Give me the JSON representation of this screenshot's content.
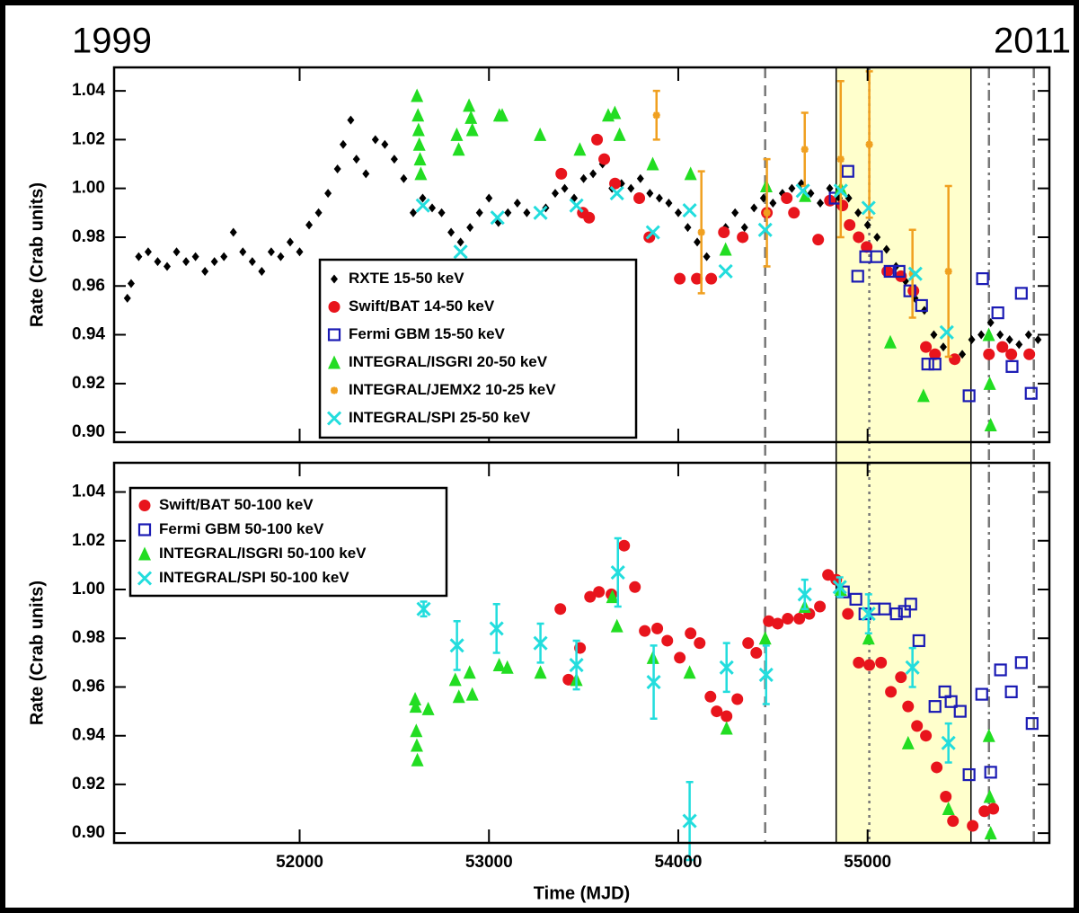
{
  "year_labels": [
    "1999",
    "2011"
  ],
  "overlays": {
    "highlight": [
      54834,
      55546
    ],
    "highlight_color": "#ffffcc",
    "vlines": [
      {
        "x": 54459,
        "style": "dashed"
      },
      {
        "x": 55009,
        "style": "dotted"
      },
      {
        "x": 55641,
        "style": "dashdot"
      },
      {
        "x": 55878,
        "style": "dashdot"
      }
    ]
  },
  "chart_data": [
    {
      "type": "scatter",
      "ylabel": "Rate (Crab units)",
      "xlim": [
        51020,
        55960
      ],
      "ylim": [
        0.896,
        1.0496
      ],
      "xticks": [
        52000,
        53000,
        54000,
        55000
      ],
      "show_xticklabels": false,
      "yticks": [
        {
          "value": 0.9,
          "label": "0.90"
        },
        {
          "value": 0.92,
          "label": "0.92"
        },
        {
          "value": 0.94,
          "label": "0.94"
        },
        {
          "value": 0.96,
          "label": "0.96"
        },
        {
          "value": 0.98,
          "label": "0.98"
        },
        {
          "value": 1.0,
          "label": "1.00"
        },
        {
          "value": 1.02,
          "label": "1.02"
        },
        {
          "value": 1.04,
          "label": "1.04"
        }
      ],
      "legend": "lower center",
      "series": [
        {
          "name": "RXTE 15-50 keV",
          "color": "#000000",
          "marker": "diamond",
          "x": [
            51090,
            51110,
            51150,
            51200,
            51250,
            51300,
            51350,
            51400,
            51450,
            51500,
            51550,
            51600,
            51650,
            51700,
            51750,
            51800,
            51850,
            51900,
            51950,
            52000,
            52050,
            52100,
            52150,
            52200,
            52230,
            52270,
            52300,
            52350,
            52400,
            52450,
            52500,
            52550,
            52600,
            52650,
            52700,
            52750,
            52800,
            52850,
            52900,
            52950,
            53000,
            53050,
            53100,
            53150,
            53200,
            53300,
            53350,
            53400,
            53450,
            53500,
            53550,
            53600,
            53650,
            53700,
            53750,
            53800,
            53850,
            53900,
            53950,
            54000,
            54050,
            54100,
            54150,
            54250,
            54300,
            54350,
            54400,
            54450,
            54500,
            54550,
            54600,
            54650,
            54700,
            54750,
            54800,
            54850,
            54900,
            54950,
            55000,
            55050,
            55100,
            55150,
            55200,
            55250,
            55300,
            55350,
            55400,
            55450,
            55500,
            55550,
            55600,
            55650,
            55700,
            55750,
            55800,
            55850,
            55900
          ],
          "values": [
            0.955,
            0.961,
            0.972,
            0.974,
            0.97,
            0.968,
            0.974,
            0.97,
            0.972,
            0.966,
            0.97,
            0.972,
            0.982,
            0.974,
            0.97,
            0.966,
            0.974,
            0.972,
            0.978,
            0.974,
            0.985,
            0.99,
            0.998,
            1.008,
            1.018,
            1.028,
            1.012,
            1.006,
            1.02,
            1.018,
            1.012,
            1.004,
            0.99,
            0.996,
            0.992,
            0.99,
            0.982,
            0.978,
            0.984,
            0.99,
            0.996,
            0.986,
            0.99,
            0.994,
            0.99,
            0.992,
            0.998,
            1.0,
            0.996,
            1.004,
            1.006,
            1.01,
            1.0,
            1.002,
            1.0,
            1.004,
            0.998,
            0.996,
            0.994,
            0.99,
            0.984,
            0.978,
            0.972,
            0.984,
            0.99,
            0.984,
            0.992,
            0.996,
            0.994,
            0.998,
            1.0,
            1.002,
            0.998,
            0.994,
            1.0,
            0.996,
            0.996,
            0.99,
            0.985,
            0.98,
            0.975,
            0.968,
            0.962,
            0.955,
            0.95,
            0.94,
            0.935,
            0.93,
            0.932,
            0.938,
            0.94,
            0.945,
            0.94,
            0.938,
            0.936,
            0.94,
            0.938
          ]
        },
        {
          "name": "Swift/BAT 14-50 keV",
          "color": "#e8141c",
          "marker": "circle",
          "x": [
            53382,
            53496,
            53529,
            53571,
            53609,
            53666,
            53794,
            53847,
            54008,
            54098,
            54174,
            54241,
            54340,
            54468,
            54573,
            54611,
            54739,
            54801,
            54867,
            54905,
            54953,
            54995,
            55104,
            55176,
            55242,
            55308,
            55356,
            55460,
            55641,
            55712,
            55759,
            55854
          ],
          "values": [
            1.006,
            0.99,
            0.988,
            1.02,
            1.012,
            1.002,
            0.996,
            0.98,
            0.963,
            0.963,
            0.963,
            0.982,
            0.98,
            0.99,
            0.996,
            0.99,
            0.979,
            0.995,
            0.993,
            0.985,
            0.98,
            0.976,
            0.966,
            0.964,
            0.958,
            0.935,
            0.932,
            0.93,
            0.932,
            0.935,
            0.932,
            0.932
          ]
        },
        {
          "name": "Fermi GBM 15-50 keV",
          "color": "#1a1ab4",
          "marker": "square",
          "x": [
            54829,
            54896,
            54948,
            54990,
            55047,
            55119,
            55166,
            55223,
            55285,
            55318,
            55356,
            55536,
            55607,
            55688,
            55763,
            55812,
            55864
          ],
          "values": [
            0.996,
            1.007,
            0.964,
            0.972,
            0.972,
            0.966,
            0.966,
            0.958,
            0.952,
            0.928,
            0.928,
            0.915,
            0.963,
            0.949,
            0.927,
            0.957,
            0.916
          ]
        },
        {
          "name": "INTEGRAL/ISGRI 20-50 keV",
          "color": "#22dd22",
          "marker": "triangle",
          "x": [
            52620,
            52625,
            52628,
            52632,
            52636,
            52640,
            52830,
            52840,
            52895,
            52905,
            52912,
            53055,
            53070,
            53270,
            53480,
            53630,
            53665,
            53690,
            53865,
            54065,
            54250,
            54465,
            54670,
            54858,
            55120,
            55295,
            55640,
            55645,
            55650
          ],
          "values": [
            1.038,
            1.03,
            1.024,
            1.018,
            1.012,
            1.006,
            1.022,
            1.016,
            1.034,
            1.029,
            1.024,
            1.03,
            1.03,
            1.022,
            1.016,
            1.03,
            1.031,
            1.022,
            1.01,
            1.006,
            0.975,
            1.001,
            0.997,
            1.0,
            0.937,
            0.915,
            0.94,
            0.92,
            0.903
          ]
        },
        {
          "name": "INTEGRAL/JEMX2 10-25 keV",
          "color": "#f0a020",
          "marker": "asterisk",
          "x": [
            53885,
            54122,
            54468,
            54668,
            54858,
            55009,
            55237,
            55427
          ],
          "values": [
            1.03,
            0.982,
            0.99,
            1.016,
            1.012,
            1.018,
            0.965,
            0.966
          ],
          "errors": [
            0.01,
            0.025,
            0.022,
            0.015,
            0.032,
            0.03,
            0.018,
            0.035
          ]
        },
        {
          "name": "INTEGRAL/SPI 25-50 keV",
          "color": "#22dddd",
          "marker": "cross",
          "x": [
            52651,
            52850,
            53045,
            53272,
            53462,
            53676,
            53866,
            54060,
            54250,
            54459,
            54658,
            54858,
            55005,
            55252,
            55418
          ],
          "values": [
            0.993,
            0.974,
            0.988,
            0.99,
            0.993,
            0.998,
            0.982,
            0.991,
            0.966,
            0.983,
            0.999,
            0.999,
            0.992,
            0.965,
            0.941
          ]
        }
      ]
    },
    {
      "type": "scatter",
      "ylabel": "Rate (Crab units)",
      "xlabel": "Time (MJD)",
      "xlim": [
        51020,
        55960
      ],
      "ylim": [
        0.896,
        1.052
      ],
      "xticks": [
        52000,
        53000,
        54000,
        55000
      ],
      "show_xticklabels": true,
      "yticks": [
        {
          "value": 0.9,
          "label": "0.90"
        },
        {
          "value": 0.92,
          "label": "0.92"
        },
        {
          "value": 0.94,
          "label": "0.94"
        },
        {
          "value": 0.96,
          "label": "0.96"
        },
        {
          "value": 0.98,
          "label": "0.98"
        },
        {
          "value": 1.0,
          "label": "1.00"
        },
        {
          "value": 1.02,
          "label": "1.02"
        },
        {
          "value": 1.04,
          "label": "1.04"
        }
      ],
      "legend": "upper left",
      "series": [
        {
          "name": "Swift/BAT 50-100 keV",
          "color": "#e8141c",
          "marker": "circle",
          "x": [
            53377,
            53420,
            53481,
            53534,
            53581,
            53647,
            53714,
            53771,
            53823,
            53889,
            53942,
            54008,
            54065,
            54113,
            54170,
            54203,
            54255,
            54312,
            54369,
            54412,
            54478,
            54525,
            54578,
            54639,
            54692,
            54748,
            54791,
            54834,
            54896,
            54953,
            55009,
            55071,
            55123,
            55176,
            55214,
            55261,
            55308,
            55365,
            55413,
            55451,
            55555,
            55617,
            55664
          ],
          "values": [
            0.992,
            0.963,
            0.976,
            0.997,
            0.999,
            0.998,
            1.018,
            1.001,
            0.983,
            0.984,
            0.979,
            0.972,
            0.982,
            0.978,
            0.956,
            0.95,
            0.948,
            0.955,
            0.978,
            0.974,
            0.987,
            0.986,
            0.988,
            0.988,
            0.99,
            0.993,
            1.006,
            1.004,
            0.99,
            0.97,
            0.969,
            0.97,
            0.958,
            0.964,
            0.952,
            0.944,
            0.94,
            0.927,
            0.915,
            0.905,
            0.903,
            0.909,
            0.91
          ]
        },
        {
          "name": "Fermi GBM 50-100 keV",
          "color": "#1a1ab4",
          "marker": "square",
          "x": [
            54872,
            54938,
            54986,
            55033,
            55090,
            55152,
            55195,
            55228,
            55271,
            55356,
            55408,
            55441,
            55489,
            55536,
            55603,
            55650,
            55702,
            55759,
            55812,
            55869
          ],
          "values": [
            0.999,
            0.996,
            0.99,
            0.992,
            0.992,
            0.99,
            0.991,
            0.994,
            0.979,
            0.952,
            0.958,
            0.954,
            0.95,
            0.924,
            0.957,
            0.925,
            0.967,
            0.958,
            0.97,
            0.945
          ]
        },
        {
          "name": "INTEGRAL/ISGRI 50-100 keV",
          "color": "#22dd22",
          "marker": "triangle",
          "x": [
            52610,
            52613,
            52616,
            52619,
            52622,
            52679,
            52822,
            52841,
            52898,
            52912,
            53054,
            53097,
            53272,
            53462,
            53652,
            53676,
            53866,
            54060,
            54255,
            54459,
            54668,
            54858,
            55005,
            55214,
            55427,
            55641,
            55645,
            55650
          ],
          "values": [
            0.955,
            0.952,
            0.942,
            0.936,
            0.93,
            0.951,
            0.963,
            0.956,
            0.966,
            0.957,
            0.969,
            0.968,
            0.966,
            0.963,
            0.997,
            0.985,
            0.972,
            0.966,
            0.943,
            0.98,
            0.993,
            1.0,
            0.98,
            0.937,
            0.91,
            0.94,
            0.915,
            0.9
          ]
        },
        {
          "name": "INTEGRAL/SPI 50-100 keV",
          "color": "#22dddd",
          "marker": "cross",
          "x": [
            52655,
            52831,
            53040,
            53272,
            53462,
            53681,
            53870,
            54060,
            54255,
            54464,
            54668,
            54853,
            55005,
            55237,
            55427
          ],
          "values": [
            0.992,
            0.977,
            0.984,
            0.978,
            0.969,
            1.007,
            0.962,
            0.905,
            0.968,
            0.965,
            0.998,
            1.001,
            0.99,
            0.968,
            0.937
          ],
          "errors": [
            0.003,
            0.01,
            0.01,
            0.008,
            0.01,
            0.014,
            0.015,
            0.016,
            0.01,
            0.012,
            0.006,
            0.004,
            0.008,
            0.008,
            0.008
          ]
        }
      ]
    }
  ]
}
